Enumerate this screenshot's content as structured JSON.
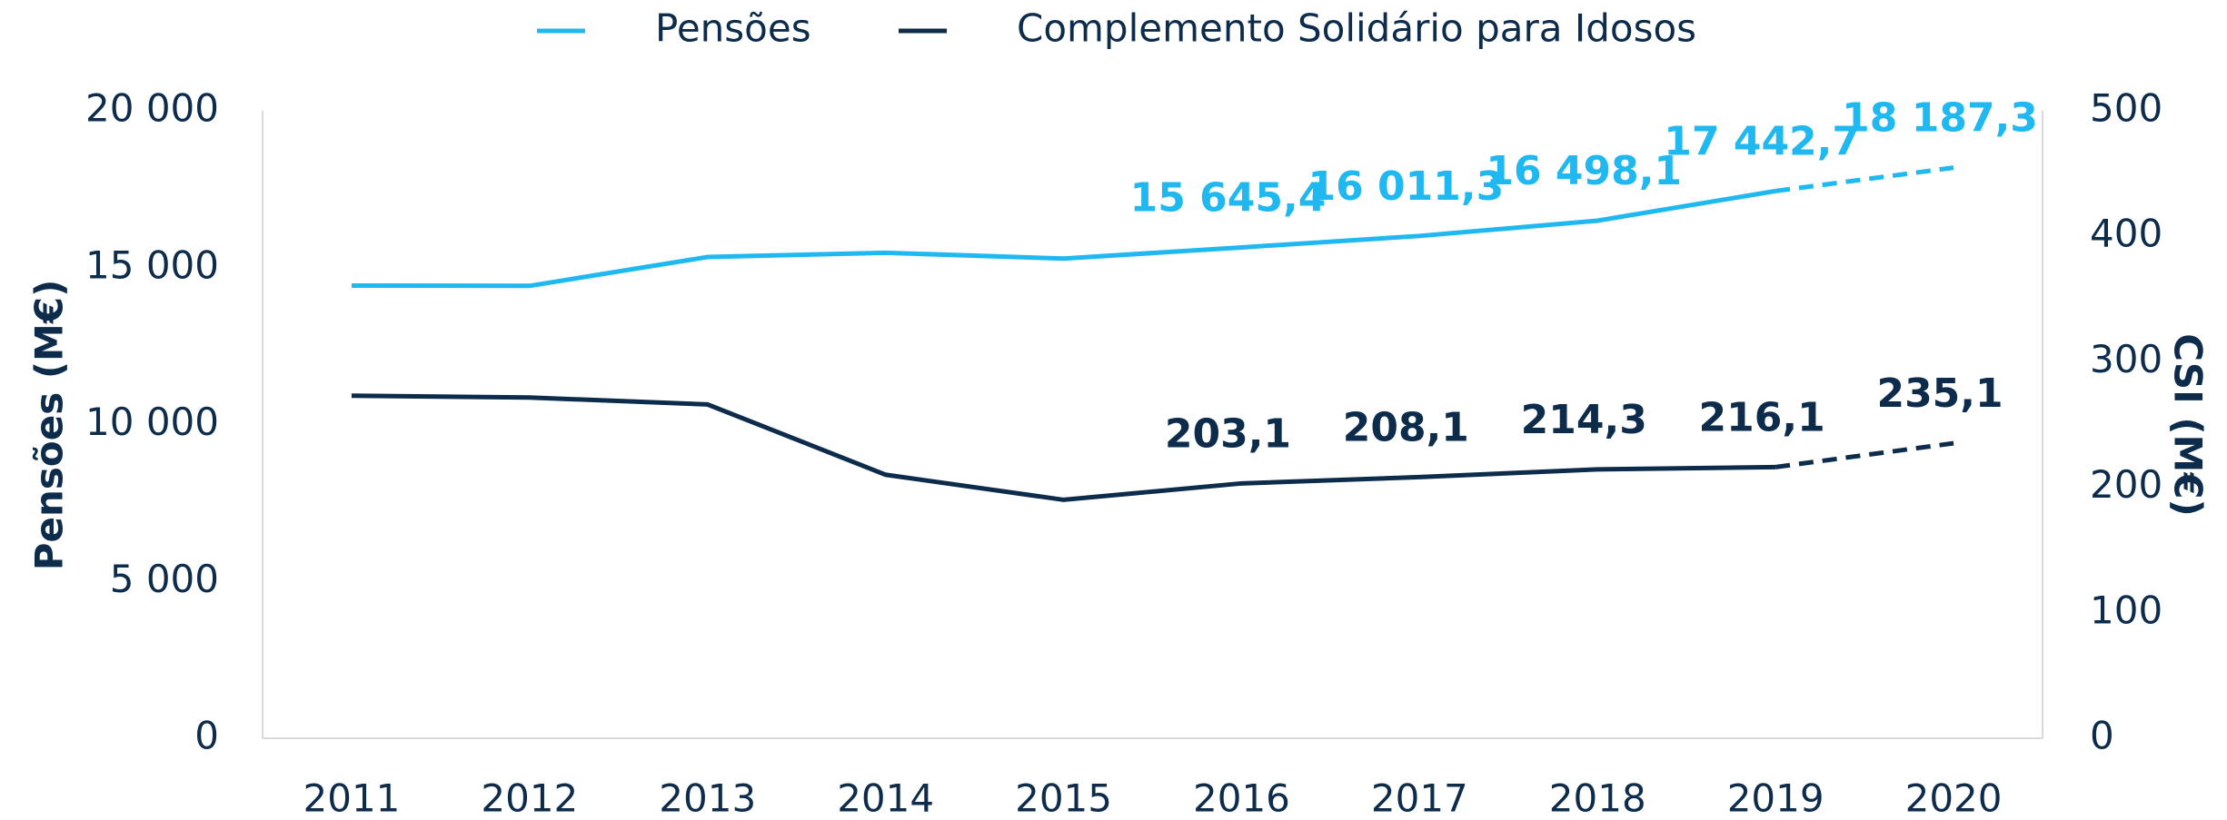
{
  "chart_data": {
    "type": "line",
    "categories": [
      "2011",
      "2012",
      "2013",
      "2014",
      "2015",
      "2016",
      "2017",
      "2018",
      "2019",
      "2020"
    ],
    "series": [
      {
        "name": "Pensões",
        "color": "#1fb8f0",
        "axis": "y",
        "values": [
          14430,
          14420,
          15340,
          15475,
          15290,
          15645.4,
          16011.3,
          16498.1,
          17442.7,
          18187.3
        ],
        "value_labels": [
          null,
          null,
          null,
          null,
          null,
          "15 645,4",
          "16 011,3",
          "16 498,1",
          "17 442,7",
          "18 187,3"
        ]
      },
      {
        "name": "Complemento Solidário para Idosos",
        "color": "#0d2b4a",
        "axis": "y2",
        "values": [
          273,
          271.5,
          266,
          210,
          190,
          203.1,
          208.1,
          214.3,
          216.1,
          235.1
        ],
        "value_labels": [
          null,
          null,
          null,
          null,
          null,
          "203,1",
          "208,1",
          "214,3",
          "216,1",
          "235,1"
        ]
      }
    ],
    "dashed_from": 8,
    "ylabel": "Pensões (M€)",
    "y2label": "CSI (M€)",
    "ylim": [
      0,
      20000
    ],
    "yticks": [
      0,
      {
        "value": 5000,
        "label": "5 000"
      },
      {
        "value": 10000,
        "label": "10 000"
      },
      {
        "value": 15000,
        "label": "15 000"
      },
      {
        "value": 20000,
        "label": "20 000"
      }
    ],
    "y2lim": [
      0,
      500
    ],
    "y2ticks": [
      0,
      100,
      200,
      300,
      400,
      500
    ],
    "legend": "top"
  }
}
